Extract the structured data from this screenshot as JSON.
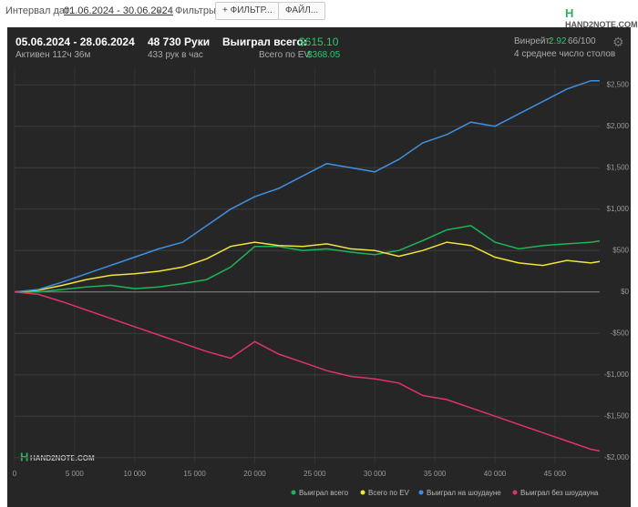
{
  "toolbar": {
    "date_label": "Интервал дат:",
    "date_range": "01.06.2024 - 30.06.2024",
    "filters_label": "Фильтры:",
    "filter_button": "ФИЛЬТР...",
    "file_button": "ФАЙЛ...",
    "logo": "HAND2NOTE.COM"
  },
  "stats": {
    "period": "05.06.2024 - 28.06.2024",
    "active": "Активен 112ч 36м",
    "hands": "48 730 Руки",
    "hands_per_hour": "433 рук в час",
    "won_label": "Выиграл всего:",
    "won_value": "$615.10",
    "ev_label": "Всего по EV:",
    "ev_value": "$368.05",
    "winrate_label": "Винрейт:",
    "winrate_value": "2.92",
    "winrate_unit": "66/100",
    "tables": "4 среднее число столов"
  },
  "watermark": "HAND2NOTE.COM",
  "chart_data": {
    "type": "line",
    "x": [
      0,
      2000,
      4000,
      6000,
      8000,
      10000,
      12000,
      14000,
      16000,
      18000,
      20000,
      22000,
      24000,
      26000,
      28000,
      30000,
      32000,
      34000,
      36000,
      38000,
      40000,
      42000,
      44000,
      46000,
      48000,
      48730
    ],
    "series": [
      {
        "name": "Выиграл всего",
        "color": "#1db45a",
        "values": [
          0,
          0,
          30,
          60,
          80,
          40,
          60,
          100,
          150,
          300,
          550,
          550,
          500,
          520,
          480,
          450,
          500,
          620,
          750,
          800,
          600,
          520,
          560,
          580,
          600,
          615
        ]
      },
      {
        "name": "Всего по EV",
        "color": "#f2e43a",
        "values": [
          0,
          20,
          80,
          150,
          200,
          220,
          250,
          300,
          400,
          550,
          600,
          560,
          550,
          580,
          520,
          500,
          430,
          500,
          600,
          560,
          420,
          350,
          320,
          380,
          350,
          368
        ]
      },
      {
        "name": "Выиграл на шоудауне",
        "color": "#3f8fe0",
        "values": [
          0,
          30,
          120,
          220,
          320,
          420,
          520,
          600,
          800,
          1000,
          1150,
          1250,
          1400,
          1550,
          1500,
          1450,
          1600,
          1800,
          1900,
          2050,
          2000,
          2150,
          2300,
          2450,
          2550,
          2550
        ]
      },
      {
        "name": "Выиграл без шоудауна",
        "color": "#e0336a",
        "values": [
          0,
          -30,
          -120,
          -220,
          -320,
          -420,
          -520,
          -620,
          -720,
          -800,
          -600,
          -750,
          -850,
          -950,
          -1020,
          -1050,
          -1100,
          -1250,
          -1300,
          -1400,
          -1500,
          -1600,
          -1700,
          -1800,
          -1900,
          -1920
        ]
      }
    ],
    "xlim": [
      0,
      48730
    ],
    "ylim": [
      -2080,
      2700
    ],
    "xticks": [
      0,
      {
        "value": 5000,
        "label": "5 000"
      },
      {
        "value": 10000,
        "label": "10 000"
      },
      {
        "value": 15000,
        "label": "15 000"
      },
      {
        "value": 20000,
        "label": "20 000"
      },
      {
        "value": 25000,
        "label": "25 000"
      },
      {
        "value": 30000,
        "label": "30 000"
      },
      {
        "value": 35000,
        "label": "35 000"
      },
      {
        "value": 40000,
        "label": "40 000"
      },
      {
        "value": 45000,
        "label": "45 000"
      }
    ],
    "yticks": [
      {
        "value": -2000,
        "label": "-$2,000"
      },
      {
        "value": -1500,
        "label": "-$1,500"
      },
      {
        "value": -1000,
        "label": "-$1,000"
      },
      {
        "value": -500,
        "label": "-$500"
      },
      {
        "value": 0,
        "label": "$0"
      },
      {
        "value": 500,
        "label": "$500"
      },
      {
        "value": 1000,
        "label": "$1,000"
      },
      {
        "value": 1500,
        "label": "$1,500"
      },
      {
        "value": 2000,
        "label": "$2,000"
      },
      {
        "value": 2500,
        "label": "$2,500"
      }
    ],
    "grid": true,
    "legend": "bottom"
  }
}
